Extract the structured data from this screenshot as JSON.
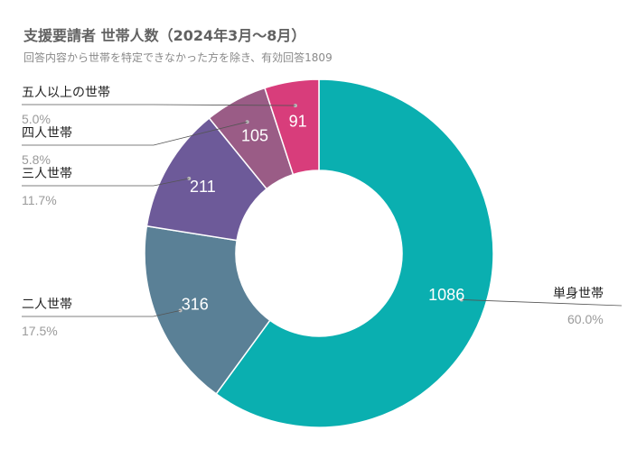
{
  "title": "支援要請者 世帯人数（2024年3月～8月）",
  "subtitle": "回答内容から世帯を特定できなかった方を除き、有効回答1809",
  "chart_data": {
    "type": "donut",
    "total": 1809,
    "slices": [
      {
        "category": "単身世帯",
        "value": 1086,
        "percent": "60.0%",
        "color": "#0aafb0"
      },
      {
        "category": "二人世帯",
        "value": 316,
        "percent": "17.5%",
        "color": "#5a8096"
      },
      {
        "category": "三人世帯",
        "value": 211,
        "percent": "11.7%",
        "color": "#6d5a99"
      },
      {
        "category": "四人世帯",
        "value": 105,
        "percent": "5.8%",
        "color": "#9a5c86"
      },
      {
        "category": "五人以上の世帯",
        "value": 91,
        "percent": "5.0%",
        "color": "#d83d7b"
      }
    ]
  }
}
